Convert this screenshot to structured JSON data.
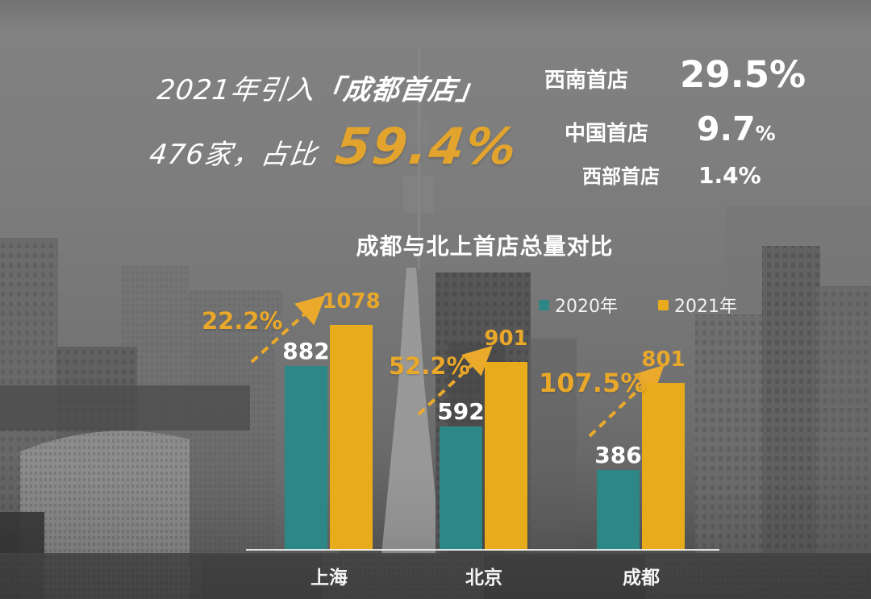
{
  "colors": {
    "gold_text": "#E9A82A",
    "gold_big": "#E2A42C",
    "gold_bar": "#E8AB1C",
    "teal_bar": "#2E8787",
    "text_white": "#FFFFFF"
  },
  "heading": {
    "line1_prefix": "2021年引入",
    "line1_highlight": "「成都首店」",
    "line2_prefix": "476家，占比",
    "line2_value": "59.4%"
  },
  "stats": [
    {
      "label": "西南首店",
      "value": "29.5",
      "unit": "%"
    },
    {
      "label": "中国首店",
      "value": "9.7",
      "unit": "%"
    },
    {
      "label": "西部首店",
      "value": "1.4",
      "unit": "%"
    }
  ],
  "chart_data": {
    "type": "bar",
    "title": "成都与北上首店总量对比",
    "categories": [
      "上海",
      "北京",
      "成都"
    ],
    "series": [
      {
        "name": "2020年",
        "color": "#2E8787",
        "values": [
          882,
          592,
          386
        ]
      },
      {
        "name": "2021年",
        "color": "#E8AB1C",
        "values": [
          1078,
          901,
          801
        ]
      }
    ],
    "growth_labels": [
      "22.2%",
      "52.2%",
      "107.5%"
    ],
    "value_labels": true,
    "legend_position": "top-right",
    "ylim": [
      0,
      1100
    ],
    "grid": false,
    "background": "grayscale city skyline photo"
  }
}
